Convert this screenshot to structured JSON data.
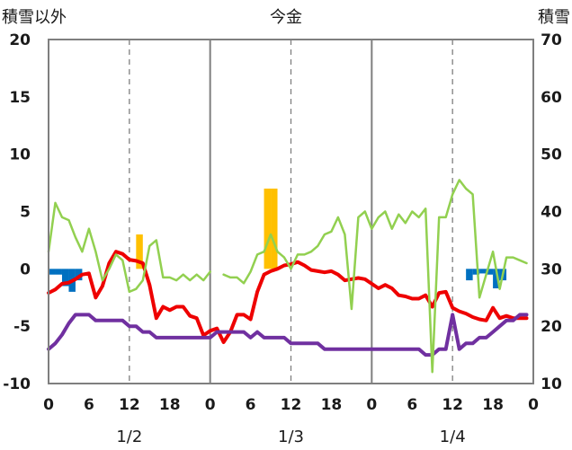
{
  "chart_data": {
    "type": "line",
    "title": "今金",
    "left_axis_label": "積雪以外",
    "right_axis_label": "積雪",
    "y_left": {
      "range": [
        -10,
        20
      ],
      "ticks": [
        "-10",
        "-5",
        "0",
        "5",
        "10",
        "15",
        "20"
      ]
    },
    "y_right": {
      "range": [
        10,
        70
      ],
      "ticks": [
        "10",
        "20",
        "30",
        "40",
        "50",
        "60",
        "70"
      ]
    },
    "x_range_hours": [
      0,
      72
    ],
    "x_tick_labels": [
      "0",
      "6",
      "12",
      "18",
      "0",
      "6",
      "12",
      "18",
      "0",
      "6",
      "12",
      "18",
      "0"
    ],
    "date_labels": [
      "1/2",
      "1/3",
      "1/4"
    ],
    "grid": "dashed vertical at 12h, solid vertical at day boundaries",
    "colors": {
      "temperature": "#ee0000",
      "snow_depth": "#7030a0",
      "wind": "#92d050",
      "precipitation": "#ffc000",
      "negative_bar": "#0070c0"
    },
    "series": [
      {
        "key": "temperature",
        "axis": "left",
        "kind": "line",
        "x": [
          0,
          1,
          2,
          3,
          4,
          5,
          6,
          7,
          8,
          9,
          10,
          11,
          12,
          13,
          14,
          15,
          16,
          17,
          18,
          19,
          20,
          21,
          22,
          23,
          24,
          25,
          26,
          27,
          28,
          29,
          30,
          31,
          32,
          33,
          34,
          35,
          36,
          37,
          38,
          39,
          40,
          41,
          42,
          43,
          44,
          45,
          46,
          47,
          48,
          49,
          50,
          51,
          52,
          53,
          54,
          55,
          56,
          57,
          58,
          59,
          60,
          61,
          62,
          63,
          64,
          65,
          66,
          67,
          68,
          69,
          70,
          71
        ],
        "values": [
          -2.1,
          -1.8,
          -1.3,
          -1.2,
          -0.9,
          -0.5,
          -0.4,
          -2.5,
          -1.5,
          0.5,
          1.5,
          1.3,
          0.8,
          0.7,
          0.5,
          -1.4,
          -4.3,
          -3.3,
          -3.6,
          -3.3,
          -3.3,
          -4.1,
          -4.3,
          -5.8,
          -5.4,
          -5.2,
          -6.4,
          -5.5,
          -4.0,
          -4.0,
          -4.4,
          -2.0,
          -0.5,
          -0.2,
          0.0,
          0.3,
          0.4,
          0.6,
          0.3,
          -0.1,
          -0.2,
          -0.3,
          -0.2,
          -0.5,
          -1.0,
          -0.9,
          -0.8,
          -0.9,
          -1.3,
          -1.7,
          -1.4,
          -1.7,
          -2.3,
          -2.4,
          -2.6,
          -2.6,
          -2.3,
          -3.3,
          -2.1,
          -2.0,
          -3.4,
          -3.7,
          -3.9,
          -4.2,
          -4.4,
          -4.5,
          -3.4,
          -4.3,
          -4.1,
          -4.3,
          -4.3,
          -4.3
        ]
      },
      {
        "key": "snow_depth",
        "axis": "right",
        "kind": "line",
        "x": [
          0,
          1,
          2,
          3,
          4,
          5,
          6,
          7,
          8,
          9,
          10,
          11,
          12,
          13,
          14,
          15,
          16,
          17,
          18,
          19,
          20,
          21,
          22,
          23,
          24,
          25,
          26,
          27,
          28,
          29,
          30,
          31,
          32,
          33,
          34,
          35,
          36,
          37,
          38,
          39,
          40,
          41,
          42,
          43,
          44,
          45,
          46,
          47,
          48,
          49,
          50,
          51,
          52,
          53,
          54,
          55,
          56,
          57,
          58,
          59,
          60,
          61,
          62,
          63,
          64,
          65,
          66,
          67,
          68,
          69,
          70,
          71
        ],
        "values": [
          16,
          17,
          18.5,
          20.5,
          22,
          22,
          22,
          21,
          21,
          21,
          21,
          21,
          20,
          20,
          19,
          19,
          18,
          18,
          18,
          18,
          18,
          18,
          18,
          18,
          18,
          19,
          19,
          19,
          19,
          19,
          18,
          19,
          18,
          18,
          18,
          18,
          17,
          17,
          17,
          17,
          17,
          16,
          16,
          16,
          16,
          16,
          16,
          16,
          16,
          16,
          16,
          16,
          16,
          16,
          16,
          16,
          15,
          15,
          16,
          16,
          22,
          16,
          17,
          17,
          18,
          18,
          19,
          20,
          21,
          21,
          22,
          22
        ]
      },
      {
        "key": "wind",
        "axis": "right",
        "kind": "line",
        "x": [
          0,
          1,
          2,
          3,
          4,
          5,
          6,
          7,
          8,
          9,
          10,
          11,
          12,
          13,
          14,
          15,
          16,
          17,
          18,
          19,
          20,
          21,
          22,
          23,
          24,
          25,
          26,
          27,
          28,
          29,
          30,
          31,
          32,
          33,
          34,
          35,
          36,
          37,
          38,
          39,
          40,
          41,
          42,
          43,
          44,
          45,
          46,
          47,
          48,
          49,
          50,
          51,
          52,
          53,
          54,
          55,
          56,
          57,
          58,
          59,
          60,
          61,
          62,
          63,
          64,
          65,
          66,
          67,
          68,
          69,
          70,
          71
        ],
        "values": [
          33,
          41.5,
          39,
          38.5,
          35.5,
          33,
          37,
          33,
          28,
          30,
          32.5,
          31.5,
          26,
          26.5,
          28,
          34,
          35,
          28.5,
          28.5,
          28,
          29,
          28,
          29,
          28,
          29.5,
          null,
          29,
          28.5,
          28.5,
          27.5,
          29.5,
          32.5,
          33,
          36,
          33,
          32,
          30,
          32.5,
          32.5,
          33,
          34,
          36,
          36.5,
          39,
          36,
          23,
          39,
          40,
          37,
          39,
          40,
          37,
          39.5,
          38,
          40,
          39,
          40.5,
          12,
          39,
          39,
          43,
          45.5,
          44,
          43,
          25,
          29,
          33,
          26.5,
          32,
          32,
          31.5,
          31
        ]
      },
      {
        "key": "precipitation",
        "axis": "left",
        "kind": "bar",
        "x": [
          13.5,
          32.5,
          33.5
        ],
        "values": [
          3,
          7,
          7
        ]
      },
      {
        "key": "negative_bar",
        "axis": "left",
        "kind": "bar",
        "x": [
          0.5,
          1.5,
          2.5,
          3.5,
          4.5,
          62.5,
          63.5,
          64.5,
          65.5,
          66.5,
          67.5
        ],
        "values": [
          -0.5,
          -0.5,
          -1.5,
          -2,
          -1,
          -1,
          -0.5,
          -0.4,
          -0.5,
          -1.7,
          -1
        ]
      }
    ]
  }
}
